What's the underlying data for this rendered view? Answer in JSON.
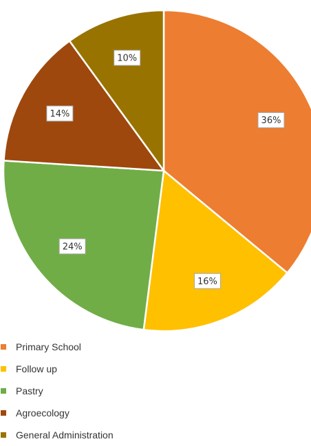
{
  "chart_data": {
    "type": "pie",
    "title": "",
    "categories": [
      "Primary School",
      "Follow up",
      "Pastry",
      "Agroecology",
      "General Administration"
    ],
    "values": [
      36,
      16,
      24,
      14,
      10
    ],
    "value_labels": [
      "36%",
      "16%",
      "24%",
      "14%",
      "10%"
    ],
    "colors": [
      "#ED7D31",
      "#FFC000",
      "#70AD47",
      "#9E480E",
      "#997300"
    ],
    "start_angle_deg": 0,
    "direction": "clockwise",
    "legend": "bottom-left"
  }
}
